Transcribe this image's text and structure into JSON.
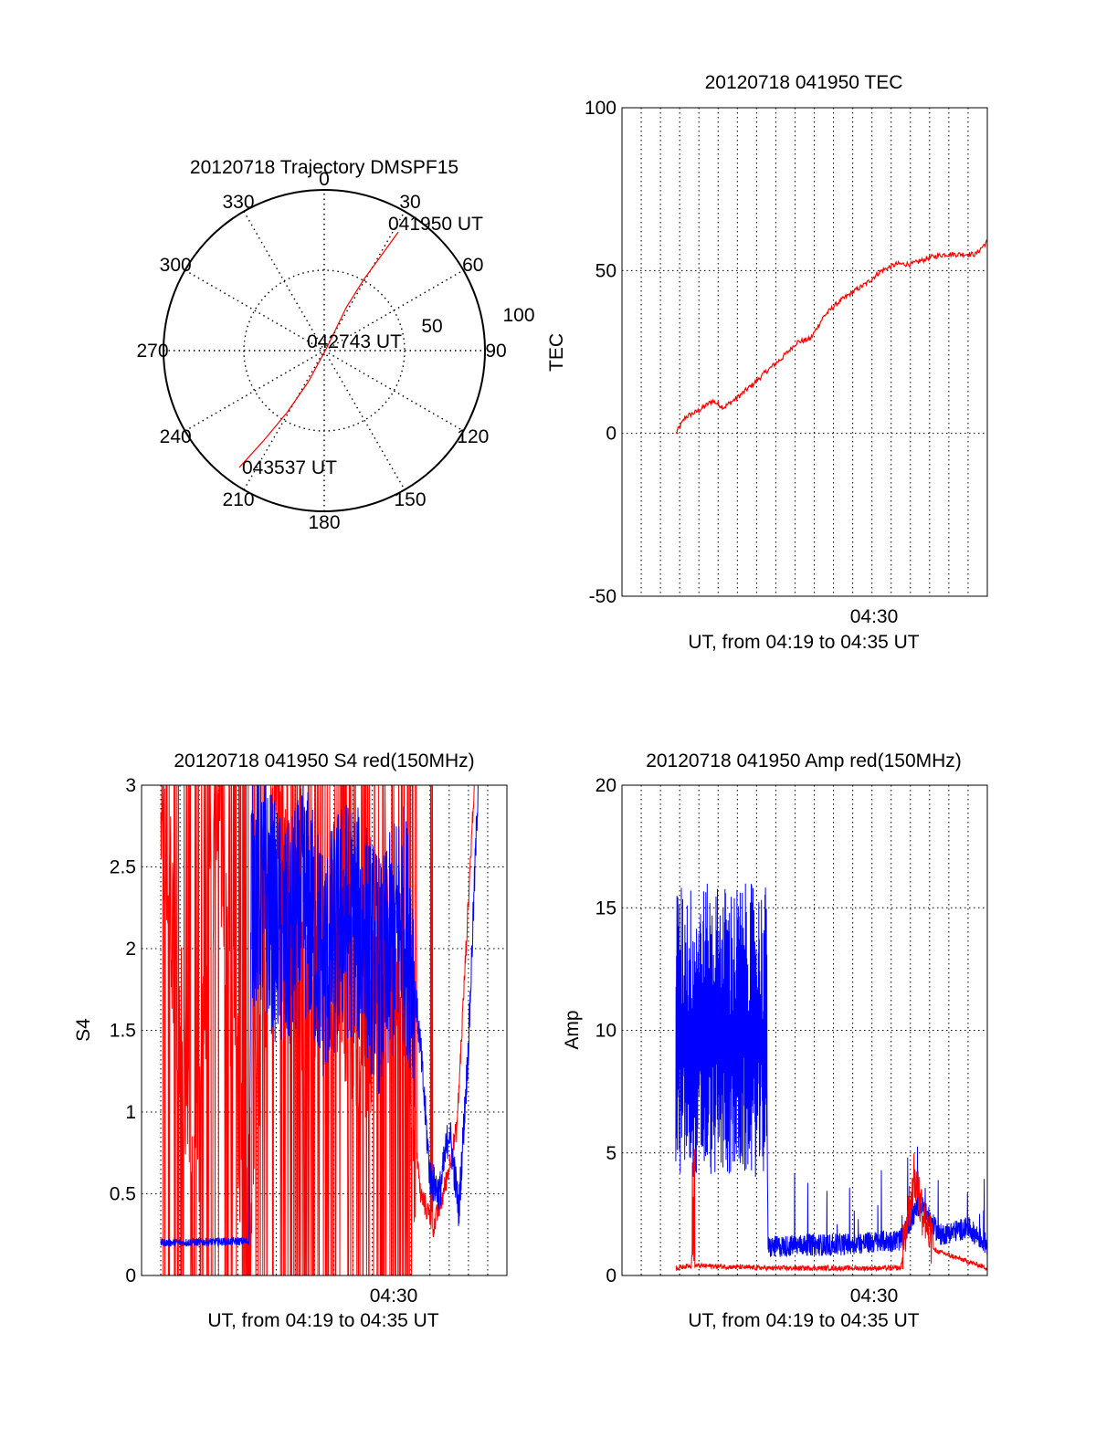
{
  "colors": {
    "red": "#ff0000",
    "blue": "#0000ff",
    "axis": "#000000"
  },
  "chart_data": [
    {
      "id": "trajectory",
      "type": "polar",
      "title": "20120718 Trajectory DMSPF15",
      "azimuth_labels": [
        "0",
        "30",
        "60",
        "90",
        "120",
        "150",
        "180",
        "210",
        "240",
        "270",
        "300",
        "330"
      ],
      "radius_labels": [
        "50",
        "100"
      ],
      "rlim": [
        0,
        100
      ],
      "grid": true,
      "series": [
        {
          "color": "#ff0000",
          "points": [
            [
              32,
              87
            ],
            [
              31,
              70
            ],
            [
              29,
              50
            ],
            [
              27,
              30
            ],
            [
              45,
              2
            ],
            [
              207,
              22
            ],
            [
              211,
              45
            ],
            [
              214,
              68
            ],
            [
              216,
              90
            ]
          ]
        }
      ],
      "annotations": [
        {
          "text": "041950 UT",
          "az": 32,
          "r": 87
        },
        {
          "text": "042743 UT",
          "az": 45,
          "r": 2
        },
        {
          "text": "043537 UT",
          "az": 216,
          "r": 90
        }
      ]
    },
    {
      "id": "tec",
      "type": "line",
      "title": "20120718 041950 TEC",
      "ylabel": "TEC",
      "xlabel": "UT, from 04:19 to 04:35 UT",
      "xlim": [
        1157,
        1176
      ],
      "ylim": [
        -50,
        100
      ],
      "yticks": [
        -50,
        0,
        50,
        100
      ],
      "xtick_labels": [
        {
          "x": 1170,
          "label": "04:30"
        }
      ],
      "grid": true,
      "series": [
        {
          "color": "#ff0000",
          "x": [
            1159.8,
            1160.3,
            1161,
            1161.7,
            1162.3,
            1163,
            1163.8,
            1164.5,
            1165.3,
            1166.1,
            1166.8,
            1167.5,
            1168.2,
            1168.9,
            1169.7,
            1170.5,
            1171.3,
            1172.1,
            1173,
            1173.8,
            1174.6,
            1175.4,
            1176
          ],
          "y": [
            0,
            5,
            7,
            10,
            8,
            11,
            15,
            19,
            23,
            28,
            29,
            36,
            40,
            43,
            46,
            50,
            52,
            52,
            54,
            55,
            55,
            55,
            59
          ]
        }
      ]
    },
    {
      "id": "s4",
      "type": "line",
      "title": "20120718 041950 S4 red(150MHz)",
      "ylabel": "S4",
      "xlabel": "UT, from 04:19 to 04:35 UT",
      "xlim": [
        1157,
        1176
      ],
      "ylim": [
        0,
        3
      ],
      "yticks": [
        0,
        0.5,
        1,
        1.5,
        2,
        2.5,
        3
      ],
      "ytick_labels": [
        "0",
        "0.5",
        "1",
        "1.5",
        "2",
        "2.5",
        "3"
      ],
      "xtick_labels": [
        {
          "x": 1170,
          "label": "04:30"
        }
      ],
      "grid": true,
      "series": [
        {
          "color": "#ff0000",
          "note_level": "spikes 0 to 3 between 04:20 and 04:29; 0.3 to 1.0 near 04:33",
          "x": [
            1158,
            1159.8,
            1161,
            1162.5,
            1164,
            1165.5,
            1167,
            1168.5,
            1170.2,
            1171.5,
            1172.2,
            1172.7,
            1173.4,
            1174.3
          ],
          "y": [
            3,
            0.5,
            3,
            0.2,
            3,
            1.6,
            2.0,
            1.4,
            2.2,
            0.5,
            0.3,
            0.5,
            0.9,
            3
          ]
        },
        {
          "color": "#0000ff",
          "x": [
            1158,
            1162.6,
            1162.7,
            1163.5,
            1164.5,
            1165.5,
            1166.5,
            1167.5,
            1168.5,
            1169.5,
            1170.5,
            1171,
            1171.5,
            1172,
            1172.5,
            1173,
            1173.5,
            1174,
            1174.5
          ],
          "y": [
            0.2,
            0.21,
            2.4,
            2.3,
            2.0,
            2.3,
            1.9,
            2.2,
            2.1,
            1.8,
            2.2,
            2.0,
            1.4,
            0.6,
            0.5,
            0.9,
            0.4,
            1.4,
            3
          ]
        }
      ]
    },
    {
      "id": "amp",
      "type": "line",
      "title": "20120718 041950 Amp red(150MHz)",
      "ylabel": "Amp",
      "xlabel": "UT, from 04:19 to 04:35 UT",
      "xlim": [
        1157,
        1176
      ],
      "ylim": [
        0,
        20
      ],
      "yticks": [
        0,
        5,
        10,
        15,
        20
      ],
      "xtick_labels": [
        {
          "x": 1170,
          "label": "04:30"
        }
      ],
      "grid": true,
      "series": [
        {
          "color": "#0000ff",
          "note_level": "oscillation 4 to 17 from 04:20 to 04:24, then near 0.7 with bursts",
          "x": [
            1159.8,
            1162,
            1164.5,
            1164.6,
            1166.5,
            1168,
            1170,
            1171.5,
            1172.5,
            1173.5,
            1175,
            1176
          ],
          "y": [
            10,
            10,
            10,
            0.7,
            0.8,
            0.8,
            0.9,
            1.0,
            2.5,
            1.2,
            1.5,
            0.8
          ]
        },
        {
          "color": "#ff0000",
          "x": [
            1159.8,
            1160.5,
            1161,
            1164.5,
            1171.5,
            1172.2,
            1173,
            1176
          ],
          "y": [
            0.2,
            0.3,
            0.3,
            0.2,
            0.2,
            3.5,
            1.0,
            0.2
          ]
        }
      ]
    }
  ]
}
